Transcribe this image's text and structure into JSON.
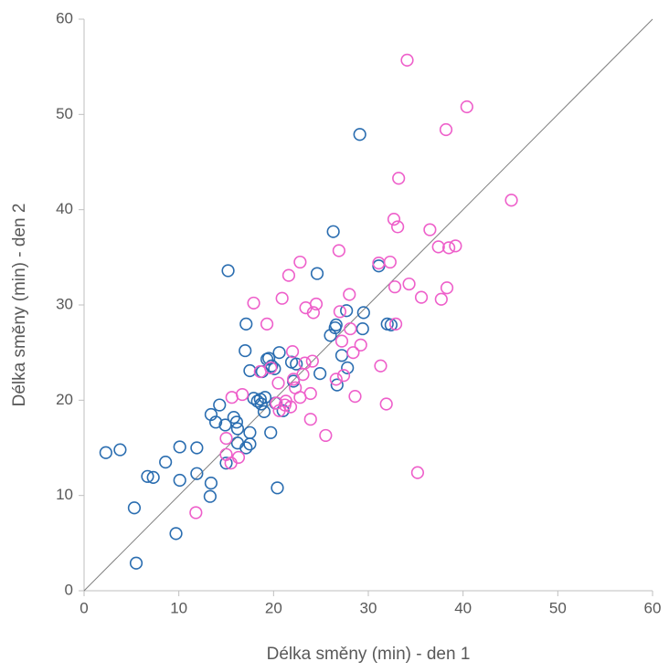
{
  "chart_data": {
    "type": "scatter",
    "xlabel": "Délka směny (min) - den 1",
    "ylabel": "Délka směny (min) - den 2",
    "xlim": [
      0,
      60
    ],
    "ylim": [
      0,
      60
    ],
    "xticks": [
      0,
      10,
      20,
      30,
      40,
      50,
      60
    ],
    "yticks": [
      0,
      10,
      20,
      30,
      40,
      50,
      60
    ],
    "grid": false,
    "series": [
      {
        "color": "#2a6db0",
        "x": [
          2.3,
          3.8,
          5.3,
          5.5,
          6.7,
          7.3,
          8.6,
          9.7,
          10.1,
          10.1,
          11.9,
          11.9,
          13.3,
          13.4,
          13.4,
          13.9,
          14.3,
          14.9,
          15,
          15.2,
          15.8,
          16.1,
          16.2,
          16.2,
          17,
          17.1,
          17.1,
          17.5,
          17.5,
          17.5,
          17.9,
          18.3,
          18.6,
          18.7,
          18.8,
          19,
          19.1,
          19.3,
          19.5,
          19.7,
          19.8,
          20.1,
          20.2,
          20.4,
          20.6,
          21,
          21.9,
          22.1,
          22.4,
          24.6,
          24.9,
          26,
          26.3,
          26.5,
          26.6,
          26.7,
          27.2,
          27.7,
          27.8,
          29.1,
          29.4,
          29.5,
          31.1,
          32,
          32.4
        ],
        "values": [
          14.5,
          14.8,
          8.7,
          2.9,
          12,
          11.9,
          13.5,
          6,
          15.1,
          11.6,
          15,
          12.3,
          9.9,
          11.3,
          18.5,
          17.7,
          19.5,
          17.4,
          13.4,
          33.6,
          18.2,
          17.7,
          17,
          15.5,
          25.2,
          28,
          15,
          15.4,
          16.6,
          23.1,
          20.2,
          19.9,
          20.1,
          19.6,
          23,
          18.8,
          20.3,
          24.3,
          24.4,
          16.6,
          23.6,
          23.3,
          19.7,
          10.8,
          25,
          18.9,
          24,
          22,
          23.8,
          33.3,
          22.8,
          26.8,
          37.7,
          27.6,
          27.9,
          21.6,
          24.7,
          29.4,
          23.4,
          47.9,
          27.5,
          29.2,
          34.1,
          28,
          27.9
        ]
      },
      {
        "color": "#ee5fca",
        "x": [
          11.8,
          15,
          15,
          15.5,
          15.6,
          16.3,
          16.7,
          17.9,
          18.6,
          19.3,
          19.7,
          20.3,
          20.5,
          20.6,
          20.9,
          21.2,
          21.3,
          21.6,
          21.8,
          22,
          22.1,
          22.3,
          22.8,
          22.8,
          23.1,
          23.3,
          23.4,
          23.9,
          23.9,
          24.1,
          24.2,
          24.5,
          25.5,
          26.6,
          26.9,
          27,
          27.2,
          27.4,
          28,
          28.1,
          28.4,
          28.6,
          29.2,
          31.1,
          31.3,
          31.9,
          32.3,
          32.7,
          32.8,
          32.9,
          33.1,
          33.2,
          34.1,
          34.3,
          35.2,
          35.6,
          36.5,
          37.4,
          37.7,
          38.2,
          38.3,
          38.5,
          39.2,
          40.4,
          45.1
        ],
        "values": [
          8.2,
          14.3,
          16,
          13.4,
          20.3,
          14,
          20.6,
          30.2,
          23,
          28,
          23.4,
          19.7,
          21.8,
          18.9,
          30.7,
          19.5,
          19.9,
          33.1,
          19.3,
          25.1,
          22.2,
          21.3,
          20.3,
          34.5,
          22.7,
          23.9,
          29.7,
          20.7,
          18,
          24.1,
          29.2,
          30.1,
          16.3,
          22.2,
          35.7,
          29.3,
          26.2,
          22.6,
          31.1,
          27.5,
          25,
          20.4,
          25.8,
          34.4,
          23.6,
          19.6,
          34.5,
          39,
          31.9,
          28,
          38.2,
          43.3,
          55.7,
          32.2,
          12.4,
          30.8,
          37.9,
          36.1,
          30.6,
          48.4,
          31.8,
          36,
          36.2,
          50.8,
          41
        ]
      }
    ]
  }
}
